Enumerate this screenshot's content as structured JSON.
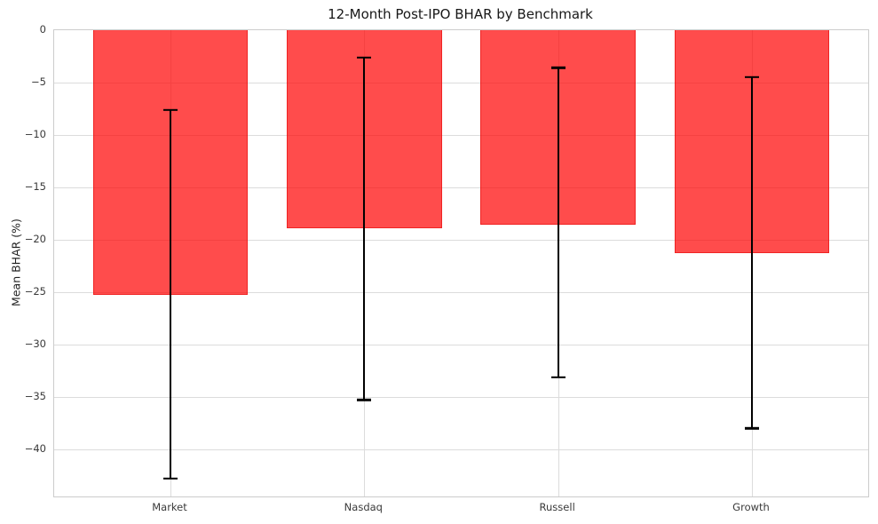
{
  "title": "12-Month Post-IPO BHAR by Benchmark",
  "chart_data": {
    "type": "bar",
    "title": "12-Month Post-IPO BHAR by Benchmark",
    "xlabel": "",
    "ylabel": "Mean BHAR (%)",
    "categories": [
      "Market",
      "Nasdaq",
      "Russell",
      "Growth"
    ],
    "values": [
      -25.3,
      -18.9,
      -18.6,
      -21.3
    ],
    "error_bars": {
      "upper": [
        -7.6,
        -2.6,
        -3.6,
        -4.5
      ],
      "lower": [
        -42.8,
        -35.3,
        -33.1,
        -38.0
      ]
    },
    "ylim": [
      -44.5,
      0
    ],
    "yticks": [
      0,
      -5,
      -10,
      -15,
      -20,
      -25,
      -30,
      -35,
      -40
    ],
    "grid": true,
    "legend": "none",
    "bar_fill": "rgba(255,0,0,0.70)",
    "bar_fill_hex_on_white": "#ff4d4d",
    "bar_edge_color": "#eb1919",
    "error_bar_color": "#000000",
    "grid_color": "#dcdcdc",
    "spine_color": "#cccccc"
  }
}
